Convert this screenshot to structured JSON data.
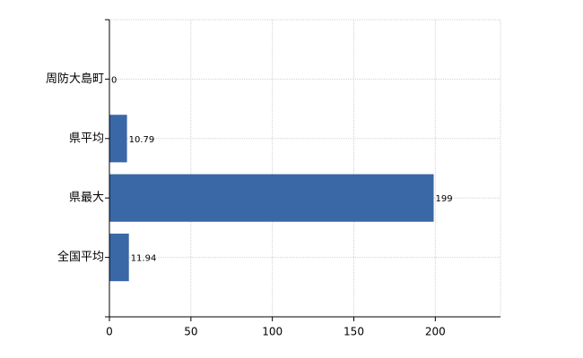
{
  "chart_data": {
    "type": "bar",
    "orientation": "horizontal",
    "categories": [
      "周防大島町",
      "県平均",
      "県最大",
      "全国平均"
    ],
    "values": [
      0,
      10.79,
      199,
      11.94
    ],
    "color": "#3a67a6",
    "xlim": [
      0,
      240
    ],
    "xticks": [
      0,
      50,
      100,
      150,
      200
    ],
    "grid": true
  }
}
